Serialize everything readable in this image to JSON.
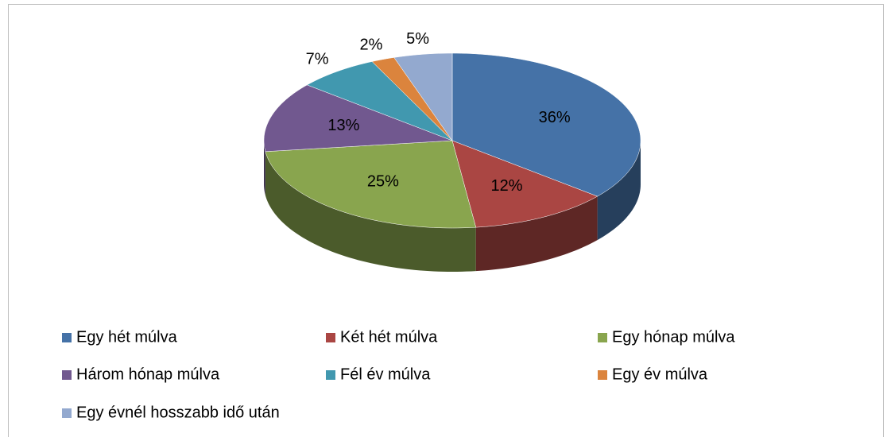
{
  "chart_data": {
    "type": "pie",
    "categories": [
      "Egy hét múlva",
      "Két hét múlva",
      "Egy hónap múlva",
      "Három hónap múlva",
      "Fél év múlva",
      "Egy év múlva",
      "Egy évnél hosszabb idő után"
    ],
    "values": [
      36,
      12,
      25,
      13,
      7,
      2,
      5
    ],
    "value_labels": [
      "36%",
      "12%",
      "25%",
      "13%",
      "7%",
      "2%",
      "5%"
    ],
    "colors": [
      "#4572a7",
      "#aa4643",
      "#89a54e",
      "#71588f",
      "#4198af",
      "#db843d",
      "#93a9cf"
    ],
    "legend": "bottom"
  }
}
